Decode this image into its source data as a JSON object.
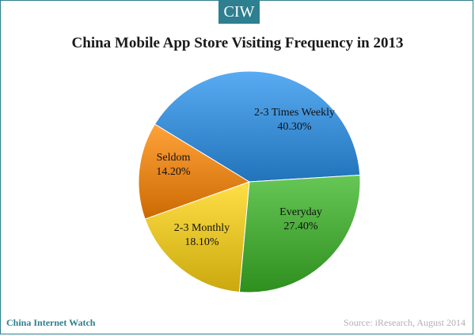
{
  "logo": "CIW",
  "footer": {
    "brand": "China Internet Watch",
    "source": "Source: iResearch, August 2014"
  },
  "chart_data": {
    "type": "pie",
    "title": "China Mobile App Store Visiting Frequency in 2013",
    "slices": [
      {
        "label": "2-3 Times Weekly",
        "value": 40.3,
        "value_label": "40.30%",
        "color": "#3d8fd6"
      },
      {
        "label": "Everyday",
        "value": 27.4,
        "value_label": "27.40%",
        "color": "#4aaa3a"
      },
      {
        "label": "2-3 Monthly",
        "value": 18.1,
        "value_label": "18.10%",
        "color": "#e6c42a"
      },
      {
        "label": "Seldom",
        "value": 14.2,
        "value_label": "14.20%",
        "color": "#e8861e"
      }
    ],
    "legend": "none"
  }
}
